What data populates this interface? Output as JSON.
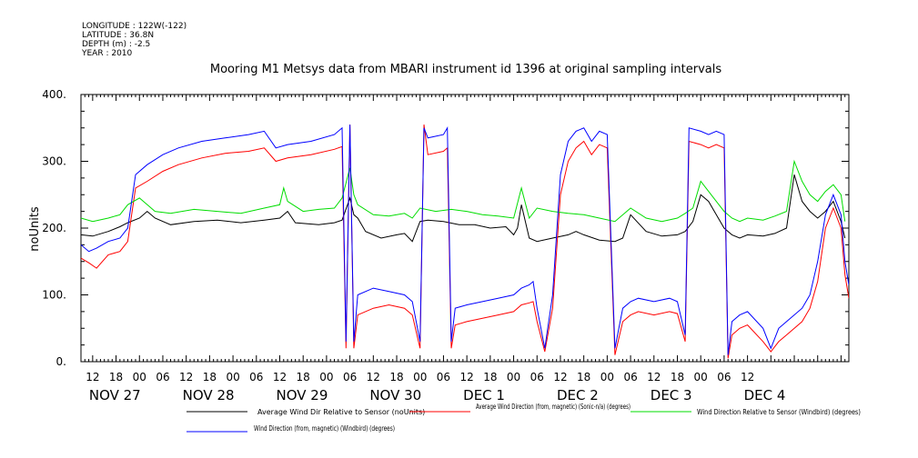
{
  "header": {
    "longitude": "LONGITUDE : 122W(-122)",
    "latitude": "LATITUDE : 36.8N",
    "depth": "DEPTH (m) : -2.5",
    "year": "YEAR : 2010"
  },
  "chart_data": {
    "type": "line",
    "title": "Mooring M1 Metsys data from MBARI instrument id 1396 at original sampling intervals",
    "ylabel": "noUnits",
    "xlabel": "",
    "ylim": [
      0,
      400
    ],
    "yticks": [
      "0.",
      "100.",
      "200.",
      "300.",
      "400."
    ],
    "xlim_hours": [
      -15,
      182
    ],
    "hour_tick_labels": [
      "12",
      "18",
      "00",
      "06",
      "12",
      "18",
      "00",
      "06",
      "12",
      "18",
      "00",
      "06",
      "12",
      "18",
      "00",
      "06",
      "12",
      "18",
      "00",
      "06",
      "12",
      "18",
      "00",
      "06",
      "12",
      "18",
      "00",
      "06",
      "12"
    ],
    "day_labels": [
      "NOV 27",
      "NOV 28",
      "NOV 29",
      "NOV 30",
      "DEC  1",
      "DEC  2",
      "DEC  3",
      "DEC  4"
    ],
    "grid": false,
    "legend_position": "bottom",
    "series": [
      {
        "name": "Average Wind Dir Relative to Sensor (noUnits)",
        "color": "#000000",
        "points": [
          [
            -15,
            190
          ],
          [
            -12,
            188
          ],
          [
            -8,
            195
          ],
          [
            -5,
            202
          ],
          [
            -3,
            208
          ],
          [
            0,
            215
          ],
          [
            2,
            225
          ],
          [
            4,
            215
          ],
          [
            8,
            205
          ],
          [
            14,
            210
          ],
          [
            20,
            212
          ],
          [
            26,
            208
          ],
          [
            32,
            212
          ],
          [
            36,
            215
          ],
          [
            38,
            225
          ],
          [
            40,
            208
          ],
          [
            46,
            205
          ],
          [
            50,
            208
          ],
          [
            52,
            212
          ],
          [
            54,
            245
          ],
          [
            55,
            220
          ],
          [
            56,
            215
          ],
          [
            58,
            195
          ],
          [
            62,
            185
          ],
          [
            66,
            190
          ],
          [
            68,
            192
          ],
          [
            70,
            180
          ],
          [
            72,
            210
          ],
          [
            74,
            212
          ],
          [
            78,
            210
          ],
          [
            82,
            205
          ],
          [
            86,
            205
          ],
          [
            90,
            200
          ],
          [
            94,
            202
          ],
          [
            96,
            190
          ],
          [
            97,
            200
          ],
          [
            98,
            235
          ],
          [
            100,
            185
          ],
          [
            102,
            180
          ],
          [
            106,
            185
          ],
          [
            110,
            190
          ],
          [
            112,
            195
          ],
          [
            114,
            190
          ],
          [
            118,
            182
          ],
          [
            122,
            180
          ],
          [
            124,
            185
          ],
          [
            126,
            220
          ],
          [
            130,
            195
          ],
          [
            134,
            188
          ],
          [
            138,
            190
          ],
          [
            140,
            195
          ],
          [
            142,
            210
          ],
          [
            144,
            250
          ],
          [
            146,
            240
          ],
          [
            148,
            220
          ],
          [
            150,
            200
          ],
          [
            152,
            190
          ],
          [
            154,
            185
          ],
          [
            156,
            190
          ],
          [
            160,
            188
          ],
          [
            163,
            192
          ],
          [
            166,
            200
          ],
          [
            168,
            280
          ],
          [
            170,
            240
          ],
          [
            172,
            225
          ],
          [
            174,
            215
          ],
          [
            176,
            225
          ],
          [
            178,
            240
          ],
          [
            180,
            210
          ],
          [
            181,
            185
          ]
        ]
      },
      {
        "name": "Average Wind Direction (from, magnetic) (Sonic-n/a) (degrees)",
        "color": "#ff0000",
        "points": [
          [
            -15,
            155
          ],
          [
            -13,
            148
          ],
          [
            -11,
            140
          ],
          [
            -8,
            160
          ],
          [
            -5,
            165
          ],
          [
            -3,
            180
          ],
          [
            -1,
            260
          ],
          [
            2,
            270
          ],
          [
            6,
            285
          ],
          [
            10,
            295
          ],
          [
            16,
            305
          ],
          [
            22,
            312
          ],
          [
            28,
            315
          ],
          [
            32,
            320
          ],
          [
            35,
            300
          ],
          [
            38,
            305
          ],
          [
            44,
            310
          ],
          [
            50,
            318
          ],
          [
            52,
            322
          ],
          [
            53,
            20
          ],
          [
            54,
            355
          ],
          [
            55,
            20
          ],
          [
            56,
            70
          ],
          [
            60,
            80
          ],
          [
            64,
            85
          ],
          [
            68,
            80
          ],
          [
            70,
            70
          ],
          [
            72,
            20
          ],
          [
            73,
            355
          ],
          [
            74,
            310
          ],
          [
            78,
            315
          ],
          [
            79,
            320
          ],
          [
            80,
            20
          ],
          [
            81,
            55
          ],
          [
            84,
            60
          ],
          [
            88,
            65
          ],
          [
            92,
            70
          ],
          [
            96,
            75
          ],
          [
            98,
            85
          ],
          [
            100,
            88
          ],
          [
            101,
            90
          ],
          [
            102,
            60
          ],
          [
            104,
            15
          ],
          [
            106,
            80
          ],
          [
            108,
            250
          ],
          [
            110,
            300
          ],
          [
            112,
            320
          ],
          [
            114,
            330
          ],
          [
            116,
            310
          ],
          [
            118,
            325
          ],
          [
            120,
            320
          ],
          [
            122,
            10
          ],
          [
            124,
            60
          ],
          [
            126,
            70
          ],
          [
            128,
            75
          ],
          [
            132,
            70
          ],
          [
            136,
            75
          ],
          [
            138,
            72
          ],
          [
            140,
            30
          ],
          [
            141,
            330
          ],
          [
            144,
            325
          ],
          [
            146,
            320
          ],
          [
            148,
            325
          ],
          [
            150,
            320
          ],
          [
            151,
            5
          ],
          [
            152,
            40
          ],
          [
            154,
            50
          ],
          [
            156,
            55
          ],
          [
            160,
            30
          ],
          [
            162,
            15
          ],
          [
            164,
            30
          ],
          [
            166,
            40
          ],
          [
            170,
            60
          ],
          [
            172,
            80
          ],
          [
            174,
            120
          ],
          [
            176,
            200
          ],
          [
            178,
            230
          ],
          [
            180,
            200
          ],
          [
            181,
            130
          ],
          [
            182,
            95
          ]
        ]
      },
      {
        "name": "Wind Direction Relative to Sensor (Windbird) (degrees)",
        "color": "#00dd00",
        "points": [
          [
            -15,
            215
          ],
          [
            -12,
            210
          ],
          [
            -8,
            215
          ],
          [
            -5,
            220
          ],
          [
            -3,
            235
          ],
          [
            0,
            245
          ],
          [
            4,
            225
          ],
          [
            8,
            222
          ],
          [
            14,
            228
          ],
          [
            20,
            225
          ],
          [
            26,
            222
          ],
          [
            32,
            230
          ],
          [
            36,
            235
          ],
          [
            37,
            260
          ],
          [
            38,
            240
          ],
          [
            42,
            225
          ],
          [
            46,
            228
          ],
          [
            50,
            230
          ],
          [
            52,
            245
          ],
          [
            54,
            290
          ],
          [
            55,
            250
          ],
          [
            56,
            235
          ],
          [
            60,
            220
          ],
          [
            64,
            218
          ],
          [
            68,
            222
          ],
          [
            70,
            215
          ],
          [
            72,
            230
          ],
          [
            76,
            225
          ],
          [
            80,
            228
          ],
          [
            84,
            225
          ],
          [
            88,
            220
          ],
          [
            92,
            218
          ],
          [
            96,
            215
          ],
          [
            98,
            260
          ],
          [
            100,
            215
          ],
          [
            102,
            230
          ],
          [
            106,
            225
          ],
          [
            110,
            222
          ],
          [
            114,
            220
          ],
          [
            118,
            215
          ],
          [
            122,
            210
          ],
          [
            126,
            230
          ],
          [
            130,
            215
          ],
          [
            134,
            210
          ],
          [
            138,
            215
          ],
          [
            140,
            222
          ],
          [
            142,
            230
          ],
          [
            144,
            270
          ],
          [
            146,
            255
          ],
          [
            148,
            240
          ],
          [
            150,
            225
          ],
          [
            152,
            215
          ],
          [
            154,
            210
          ],
          [
            156,
            215
          ],
          [
            160,
            212
          ],
          [
            163,
            218
          ],
          [
            166,
            225
          ],
          [
            168,
            300
          ],
          [
            170,
            270
          ],
          [
            172,
            250
          ],
          [
            174,
            240
          ],
          [
            176,
            255
          ],
          [
            178,
            265
          ],
          [
            180,
            250
          ],
          [
            181,
            210
          ]
        ]
      },
      {
        "name": "Wind Direction (from, magnetic) (Windbird) (degrees)",
        "color": "#0000ff",
        "points": [
          [
            -15,
            175
          ],
          [
            -13,
            165
          ],
          [
            -11,
            170
          ],
          [
            -8,
            180
          ],
          [
            -5,
            185
          ],
          [
            -3,
            200
          ],
          [
            -1,
            280
          ],
          [
            2,
            295
          ],
          [
            6,
            310
          ],
          [
            10,
            320
          ],
          [
            16,
            330
          ],
          [
            22,
            335
          ],
          [
            28,
            340
          ],
          [
            32,
            345
          ],
          [
            35,
            320
          ],
          [
            38,
            325
          ],
          [
            44,
            330
          ],
          [
            50,
            340
          ],
          [
            52,
            350
          ],
          [
            53,
            30
          ],
          [
            54,
            355
          ],
          [
            55,
            30
          ],
          [
            56,
            100
          ],
          [
            60,
            110
          ],
          [
            64,
            105
          ],
          [
            68,
            100
          ],
          [
            70,
            90
          ],
          [
            72,
            30
          ],
          [
            73,
            350
          ],
          [
            74,
            335
          ],
          [
            78,
            340
          ],
          [
            79,
            350
          ],
          [
            80,
            30
          ],
          [
            81,
            80
          ],
          [
            84,
            85
          ],
          [
            88,
            90
          ],
          [
            92,
            95
          ],
          [
            96,
            100
          ],
          [
            98,
            110
          ],
          [
            100,
            115
          ],
          [
            101,
            120
          ],
          [
            102,
            80
          ],
          [
            104,
            20
          ],
          [
            106,
            100
          ],
          [
            108,
            280
          ],
          [
            110,
            330
          ],
          [
            112,
            345
          ],
          [
            114,
            350
          ],
          [
            116,
            330
          ],
          [
            118,
            345
          ],
          [
            120,
            340
          ],
          [
            122,
            20
          ],
          [
            124,
            80
          ],
          [
            126,
            90
          ],
          [
            128,
            95
          ],
          [
            132,
            90
          ],
          [
            136,
            95
          ],
          [
            138,
            90
          ],
          [
            140,
            40
          ],
          [
            141,
            350
          ],
          [
            144,
            345
          ],
          [
            146,
            340
          ],
          [
            148,
            345
          ],
          [
            150,
            340
          ],
          [
            151,
            10
          ],
          [
            152,
            60
          ],
          [
            154,
            70
          ],
          [
            156,
            75
          ],
          [
            160,
            50
          ],
          [
            162,
            20
          ],
          [
            164,
            50
          ],
          [
            166,
            60
          ],
          [
            170,
            80
          ],
          [
            172,
            100
          ],
          [
            174,
            150
          ],
          [
            176,
            220
          ],
          [
            178,
            250
          ],
          [
            180,
            220
          ],
          [
            181,
            150
          ],
          [
            182,
            115
          ]
        ]
      }
    ]
  }
}
